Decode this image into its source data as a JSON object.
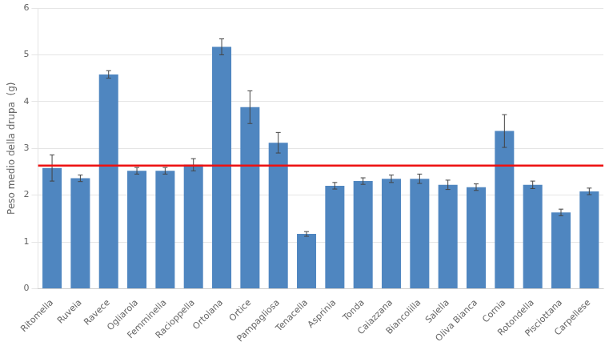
{
  "chart_data": {
    "type": "bar",
    "categories": [
      "Ritomella",
      "Ruveia",
      "Ravece",
      "Ogliarola",
      "Femminella",
      "Racioppella",
      "Ortolana",
      "Ortice",
      "Pampagliosa",
      "Tenacella",
      "Asprinia",
      "Tonda",
      "Caiazzana",
      "Biancolilla",
      "Salella",
      "Oliva Bianca",
      "Cornia",
      "Rotondella",
      "Pisciottana",
      "Carpellese"
    ],
    "values": [
      2.58,
      2.36,
      4.58,
      2.52,
      2.52,
      2.65,
      5.17,
      3.88,
      3.12,
      1.17,
      2.2,
      2.3,
      2.35,
      2.35,
      2.22,
      2.17,
      3.37,
      2.22,
      1.63,
      2.08
    ],
    "errors": [
      0.28,
      0.07,
      0.08,
      0.07,
      0.07,
      0.13,
      0.17,
      0.35,
      0.22,
      0.05,
      0.07,
      0.07,
      0.08,
      0.1,
      0.1,
      0.07,
      0.35,
      0.08,
      0.07,
      0.07
    ],
    "color": "#4f86c0",
    "reference_line": {
      "value": 2.63,
      "color": "#ee1111"
    },
    "ylabel": "Peso medio della drupa  (g)",
    "ylim": [
      0,
      6
    ],
    "yticks": [
      0,
      1,
      2,
      3,
      4,
      5,
      6
    ],
    "grid": true
  }
}
